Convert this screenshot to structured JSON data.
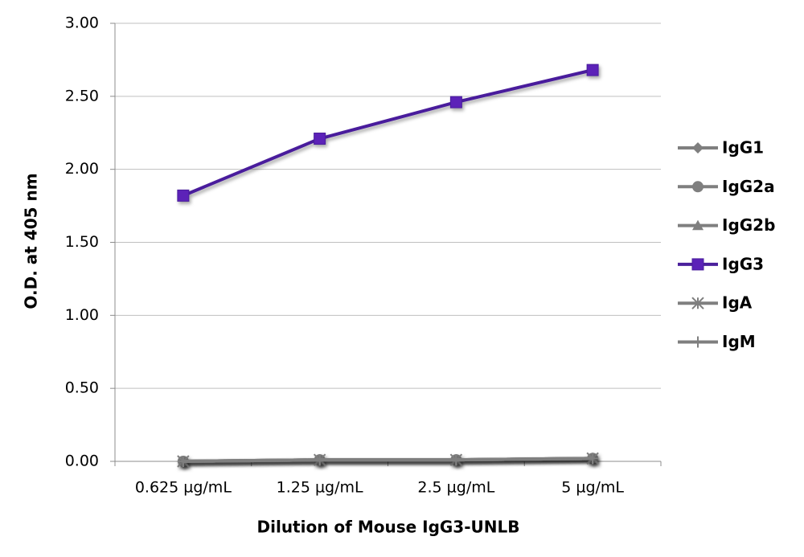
{
  "chart_data": {
    "type": "line",
    "x_label": "Dilution of Mouse IgG3-UNLB",
    "y_label": "O.D. at 405 nm",
    "categories": [
      "0.625 µg/mL",
      "1.25 µg/mL",
      "2.5 µg/mL",
      "5 µg/mL"
    ],
    "ylim": [
      0,
      3
    ],
    "yticks": [
      {
        "value": 0,
        "label": "0.00"
      },
      {
        "value": 0.5,
        "label": "0.50"
      },
      {
        "value": 1,
        "label": "1.00"
      },
      {
        "value": 1.5,
        "label": "1.50"
      },
      {
        "value": 2,
        "label": "2.00"
      },
      {
        "value": 2.5,
        "label": "2.50"
      },
      {
        "value": 3,
        "label": "3.00"
      }
    ],
    "grid": true,
    "legend": "right",
    "series": [
      {
        "name": "IgG1",
        "color": "#7f7f7f",
        "marker": "diamond",
        "values": [
          0,
          0.01,
          0.01,
          0.02
        ]
      },
      {
        "name": "IgG2a",
        "color": "#7f7f7f",
        "marker": "circle",
        "values": [
          0,
          0.01,
          0.01,
          0.02
        ]
      },
      {
        "name": "IgG2b",
        "color": "#7f7f7f",
        "marker": "triangle",
        "values": [
          0,
          0.01,
          0.01,
          0.02
        ]
      },
      {
        "name": "IgG3",
        "color": "#4a1f9c",
        "marker": "square",
        "values": [
          1.82,
          2.21,
          2.46,
          2.68
        ]
      },
      {
        "name": "IgA",
        "color": "#7f7f7f",
        "marker": "star",
        "values": [
          0,
          0.01,
          0.01,
          0.02
        ]
      },
      {
        "name": "IgM",
        "color": "#7f7f7f",
        "marker": "plus",
        "values": [
          0,
          0.01,
          0.01,
          0.02
        ]
      }
    ]
  }
}
